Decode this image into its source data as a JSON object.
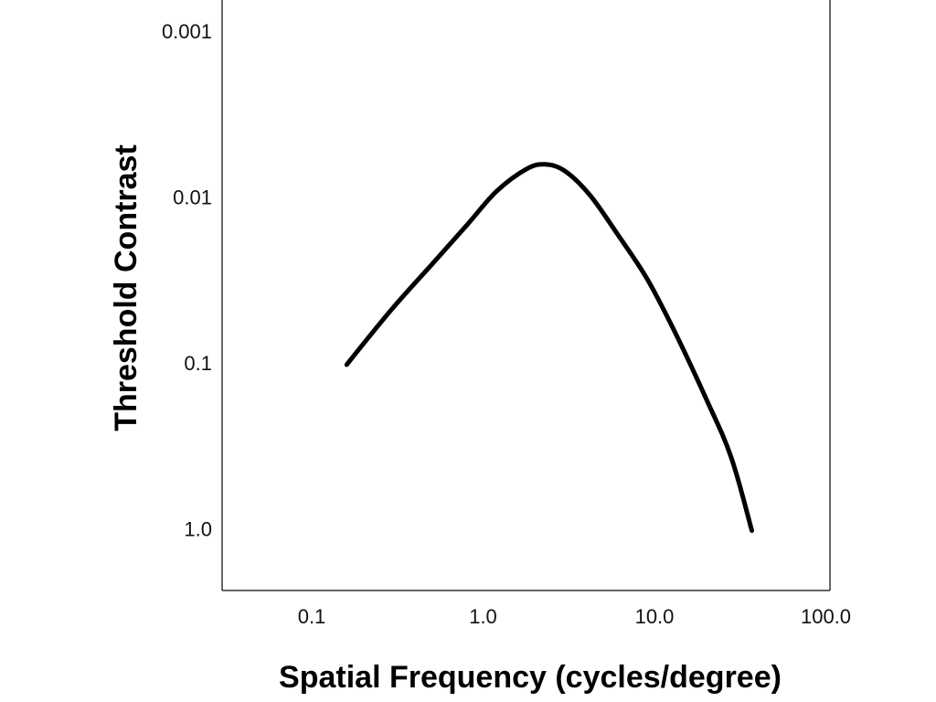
{
  "chart_data": {
    "type": "line",
    "xlabel": "Spatial Frequency (cycles/degree)",
    "ylabel": "Threshold Contrast",
    "x_scale": "log",
    "y_scale": "log",
    "y_inverted": true,
    "xlim": [
      0.05,
      100
    ],
    "ylim": [
      2.5,
      0.0005
    ],
    "x_ticks": [
      {
        "value": 0.1,
        "label": "0.1"
      },
      {
        "value": 1,
        "label": "1.0"
      },
      {
        "value": 10,
        "label": "10.0"
      },
      {
        "value": 100,
        "label": "100.0"
      }
    ],
    "y_ticks": [
      {
        "value": 0.001,
        "label": "0.001"
      },
      {
        "value": 0.01,
        "label": "0.01"
      },
      {
        "value": 0.1,
        "label": "0.1"
      },
      {
        "value": 1,
        "label": "1.0"
      }
    ],
    "grid": false,
    "series": [
      {
        "color": "#000000",
        "x": [
          0.16,
          0.2,
          0.3,
          0.5,
          0.8,
          1.2,
          1.8,
          2.3,
          3.0,
          4.2,
          6.0,
          9.0,
          13.0,
          20.0,
          28.0,
          37.0
        ],
        "y": [
          0.1,
          0.075,
          0.045,
          0.025,
          0.0145,
          0.009,
          0.0066,
          0.0062,
          0.0068,
          0.0095,
          0.016,
          0.03,
          0.062,
          0.16,
          0.36,
          1.0
        ]
      }
    ]
  }
}
